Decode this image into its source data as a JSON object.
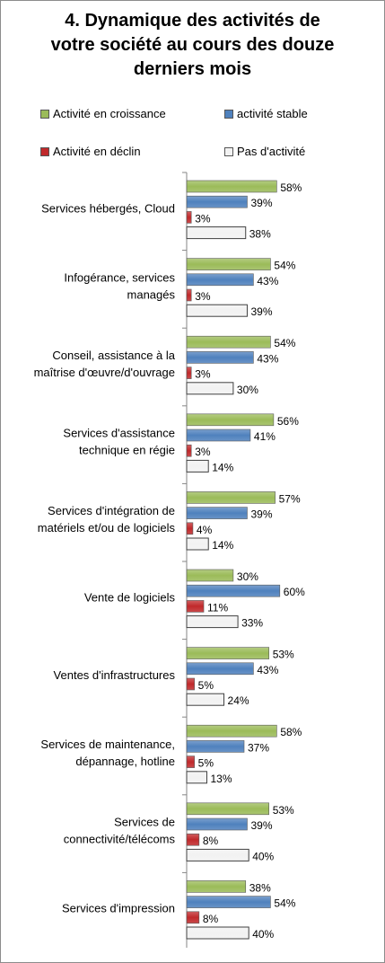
{
  "title": [
    "4. Dynamique des activités de",
    "votre société au cours des douze",
    "derniers mois"
  ],
  "chart_data": {
    "type": "bar",
    "orientation": "horizontal",
    "categories": [
      [
        "Services hébergés, Cloud"
      ],
      [
        "Infogérance, services",
        "managés"
      ],
      [
        "Conseil, assistance à la",
        "maîtrise d'œuvre/d'ouvrage"
      ],
      [
        "Services d'assistance",
        "technique en régie"
      ],
      [
        "Services d'intégration de",
        "matériels et/ou de logiciels"
      ],
      [
        "Vente de logiciels"
      ],
      [
        "Ventes d'infrastructures"
      ],
      [
        "Services de maintenance,",
        "dépannage, hotline"
      ],
      [
        "Services de",
        "connectivité/télécoms"
      ],
      [
        "Services d'impression"
      ]
    ],
    "series": [
      {
        "name": "Activité en croissance",
        "color": "#9bbb59",
        "values": [
          58,
          54,
          54,
          56,
          57,
          30,
          53,
          58,
          53,
          38
        ]
      },
      {
        "name": "activité stable",
        "color": "#4f81bd",
        "values": [
          39,
          43,
          43,
          41,
          39,
          60,
          43,
          37,
          39,
          54
        ]
      },
      {
        "name": "Activité en déclin",
        "color": "#c0292b",
        "values": [
          3,
          3,
          3,
          3,
          4,
          11,
          5,
          5,
          8,
          8
        ]
      },
      {
        "name": "Pas d'activité",
        "color": "#f2f2f2",
        "values": [
          38,
          39,
          30,
          14,
          14,
          33,
          24,
          13,
          40,
          40
        ]
      }
    ],
    "value_suffix": "%",
    "xlim": [
      0,
      100
    ],
    "legend_position": "top"
  }
}
